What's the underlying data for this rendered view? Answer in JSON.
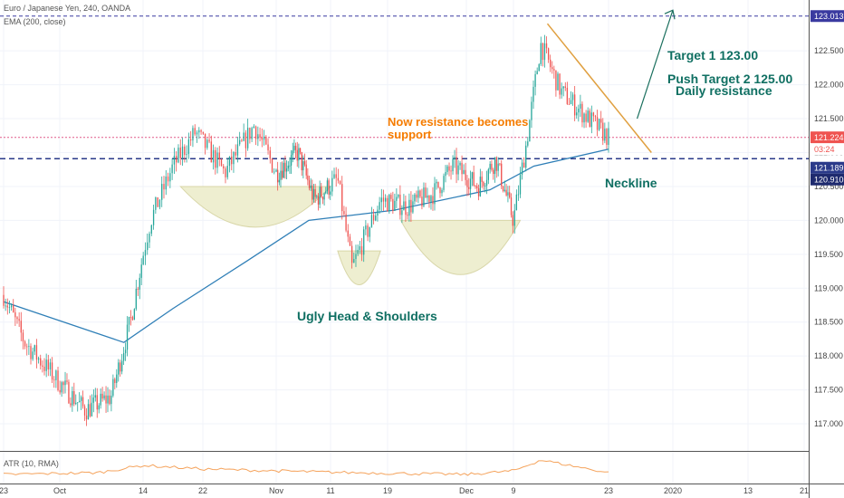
{
  "header": {
    "symbol_line": "Euro / Japanese Yen, 240, OANDA",
    "indicator_line": "EMA (200, close)",
    "atr_label": "ATR (10, RMA)"
  },
  "annotations": {
    "now_resistance_line1": "Now resistance becomes",
    "now_resistance_line2": "support",
    "target1": "Target 1 123.00",
    "target2": "Push Target 2 125.00",
    "daily_resistance": "Daily resistance",
    "neckline": "Neckline",
    "pattern": "Ugly Head & Shoulders"
  },
  "price_tags": {
    "upper": "123.013",
    "current": "121.224",
    "timer": "03:24",
    "neckline": "121.189",
    "support": "120.910"
  },
  "colors": {
    "up": "#26a69a",
    "down": "#ef5350",
    "ema": "#2f7fb7",
    "atr": "#f5a35c",
    "teal_text": "#0f6f62",
    "orange_text": "#f57c00",
    "trendline": "#e0a040",
    "shape_fill": "#eeeed0",
    "upper_line": "#3a3aa0",
    "dashed_line": "#2a3a8a",
    "current_line": "#e05a8a"
  },
  "chart_data": {
    "type": "candlestick",
    "y_axis": {
      "ylim": [
        116.6,
        123.25
      ],
      "ticks": [
        117.0,
        117.5,
        118.0,
        118.5,
        119.0,
        119.5,
        120.0,
        120.5,
        121.0,
        121.5,
        122.0,
        122.5
      ],
      "tick_labels": [
        "117.000",
        "117.500",
        "118.000",
        "118.500",
        "119.000",
        "119.500",
        "120.000",
        "120.500",
        "121.000",
        "121.500",
        "122.000",
        "122.500"
      ]
    },
    "x_axis": {
      "labels": [
        "23",
        "Oct",
        "14",
        "22",
        "Nov",
        "11",
        "19",
        "Dec",
        "9",
        "23",
        "2020",
        "13",
        "21"
      ],
      "dates": [
        "2019-09-23",
        "2019-10-01",
        "2019-10-14",
        "2019-10-22",
        "2019-11-01",
        "2019-11-11",
        "2019-11-19",
        "2019-12-01",
        "2019-12-09",
        "2019-12-23",
        "2020-01-01",
        "2020-01-13",
        "2020-01-21"
      ]
    },
    "horizontal_lines": [
      {
        "value": 123.013,
        "style": "dashed"
      },
      {
        "value": 121.224,
        "style": "dashed"
      },
      {
        "value": 120.91,
        "style": "dashed"
      }
    ],
    "candle_anchors": {
      "dates": [
        "2019-09-23",
        "2019-09-26",
        "2019-10-01",
        "2019-10-05",
        "2019-10-09",
        "2019-10-12",
        "2019-10-15",
        "2019-10-18",
        "2019-10-21",
        "2019-10-25",
        "2019-10-29",
        "2019-11-01",
        "2019-11-05",
        "2019-11-08",
        "2019-11-12",
        "2019-11-14",
        "2019-11-18",
        "2019-11-22",
        "2019-11-26",
        "2019-11-29",
        "2019-12-03",
        "2019-12-06",
        "2019-12-09",
        "2019-12-11",
        "2019-12-13",
        "2019-12-16",
        "2019-12-19",
        "2019-12-23"
      ],
      "prices": [
        118.9,
        118.2,
        117.6,
        117.2,
        117.4,
        118.5,
        120.0,
        120.8,
        121.3,
        120.7,
        121.4,
        120.7,
        121.0,
        120.3,
        120.6,
        119.3,
        120.3,
        120.2,
        120.4,
        120.8,
        120.5,
        120.9,
        120.0,
        121.2,
        122.6,
        121.9,
        121.6,
        121.22
      ],
      "count": 330
    },
    "ema": {
      "dates": [
        "2019-09-23",
        "2019-10-11",
        "2019-10-18",
        "2019-10-28",
        "2019-11-07",
        "2019-11-20",
        "2019-12-05",
        "2019-12-12",
        "2019-12-23"
      ],
      "values": [
        118.8,
        118.2,
        118.7,
        119.4,
        120.0,
        120.15,
        120.45,
        120.8,
        121.05
      ]
    },
    "shapes": {
      "left_shoulder": {
        "dates": [
          "2019-10-19",
          "2019-11-11"
        ],
        "top": 120.5,
        "bottom": 119.9
      },
      "head": {
        "dates": [
          "2019-11-12",
          "2019-11-18"
        ],
        "top": 119.55,
        "bottom": 119.05
      },
      "right_shoulder": {
        "dates": [
          "2019-11-21",
          "2019-12-10"
        ],
        "top": 120.0,
        "bottom": 119.2
      }
    },
    "trendline": {
      "dates": [
        "2019-12-14",
        "2019-12-29"
      ],
      "values": [
        122.9,
        121.0
      ]
    },
    "target_arrow": {
      "dates": [
        "2019-12-27",
        "2020-01-01"
      ],
      "values": [
        121.5,
        123.1
      ]
    },
    "atr": {
      "dates": [
        "2019-09-23",
        "2019-10-07",
        "2019-10-14",
        "2019-10-22",
        "2019-11-01",
        "2019-11-14",
        "2019-12-01",
        "2019-12-09",
        "2019-12-13",
        "2019-12-23"
      ],
      "values": [
        0.3,
        0.35,
        0.55,
        0.45,
        0.4,
        0.35,
        0.3,
        0.4,
        0.7,
        0.35
      ]
    }
  }
}
